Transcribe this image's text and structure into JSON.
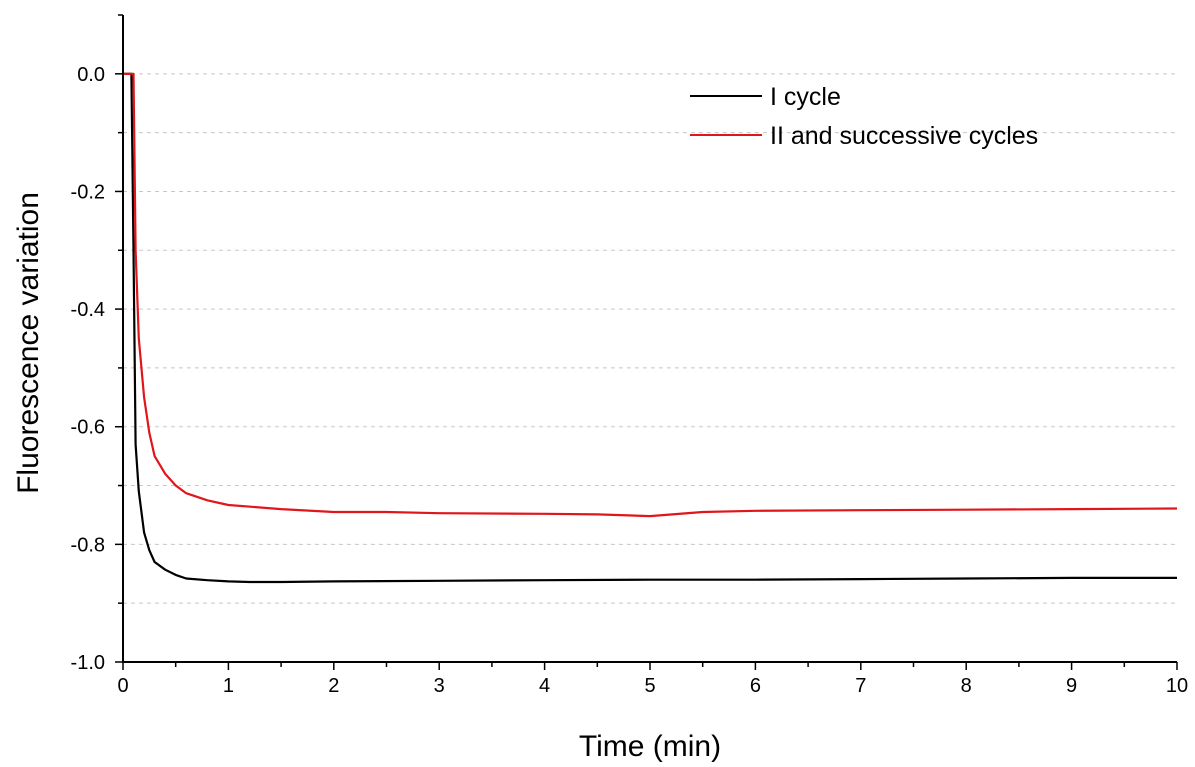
{
  "chart_data": {
    "type": "line",
    "title": "",
    "xlabel": "Time (min)",
    "ylabel": "Fluorescence variation",
    "xlim": [
      0,
      10
    ],
    "ylim": [
      -1.0,
      0.1
    ],
    "x_ticks": [
      0,
      1,
      2,
      3,
      4,
      5,
      6,
      7,
      8,
      9,
      10
    ],
    "y_ticks": [
      0.0,
      -0.2,
      -0.4,
      -0.6,
      -0.8,
      -1.0
    ],
    "x_tick_labels": [
      "0",
      "1",
      "2",
      "3",
      "4",
      "5",
      "6",
      "7",
      "8",
      "9",
      "10"
    ],
    "y_tick_labels": [
      "0.0",
      "-0.2",
      "-0.4",
      "-0.6",
      "-0.8",
      "-1.0"
    ],
    "grid": true,
    "legend_position": "top-right",
    "series": [
      {
        "name": "I cycle",
        "color": "#000000",
        "x": [
          0,
          0.05,
          0.08,
          0.1,
          0.12,
          0.15,
          0.2,
          0.25,
          0.3,
          0.4,
          0.5,
          0.6,
          0.8,
          1.0,
          1.2,
          1.5,
          2.0,
          3.0,
          4.0,
          5.0,
          6.0,
          7.0,
          8.0,
          9.0,
          10.0
        ],
        "y": [
          0.0,
          0.0,
          0.0,
          -0.3,
          -0.63,
          -0.71,
          -0.78,
          -0.81,
          -0.83,
          -0.843,
          -0.852,
          -0.858,
          -0.861,
          -0.863,
          -0.864,
          -0.864,
          -0.863,
          -0.862,
          -0.861,
          -0.86,
          -0.86,
          -0.859,
          -0.858,
          -0.857,
          -0.857
        ]
      },
      {
        "name": "II and successive cycles",
        "color": "#e0161b",
        "x": [
          0,
          0.05,
          0.1,
          0.12,
          0.15,
          0.2,
          0.25,
          0.3,
          0.4,
          0.5,
          0.6,
          0.8,
          1.0,
          1.5,
          2.0,
          2.5,
          3.0,
          4.0,
          4.5,
          5.0,
          5.5,
          6.0,
          7.0,
          8.0,
          9.0,
          10.0
        ],
        "y": [
          0.0,
          0.0,
          0.0,
          -0.3,
          -0.45,
          -0.55,
          -0.61,
          -0.65,
          -0.68,
          -0.7,
          -0.713,
          -0.725,
          -0.733,
          -0.74,
          -0.745,
          -0.745,
          -0.747,
          -0.748,
          -0.749,
          -0.752,
          -0.745,
          -0.743,
          -0.742,
          -0.741,
          -0.74,
          -0.739
        ]
      }
    ]
  }
}
